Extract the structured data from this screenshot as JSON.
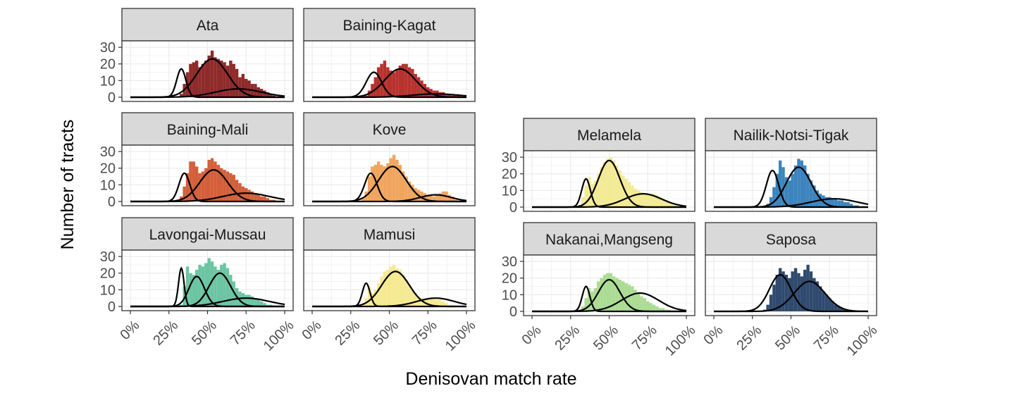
{
  "chart_data": {
    "type": "histogram",
    "xlabel": "Denisovan match rate",
    "ylabel": "Number of tracts",
    "x_ticks": [
      "0%",
      "25%",
      "50%",
      "75%",
      "100%"
    ],
    "x_range": [
      0,
      100
    ],
    "y_ticks": [
      "0",
      "10",
      "20",
      "30"
    ],
    "y_range": [
      0,
      33
    ],
    "grid": true,
    "legend": "none",
    "curve_color": "#000000",
    "panels": [
      {
        "name": "Ata",
        "color": "#8E2A2A",
        "bins": {
          "start": 0,
          "width": 2,
          "counts": [
            0,
            0,
            0,
            0,
            0,
            0,
            0,
            0,
            0,
            0,
            0,
            0,
            0,
            0,
            0,
            0,
            2,
            8,
            15,
            20,
            21,
            22,
            18,
            20,
            22,
            25,
            28,
            24,
            23,
            22,
            21,
            19,
            22,
            20,
            17,
            12,
            14,
            11,
            10,
            8,
            8,
            6,
            5,
            4,
            3,
            2,
            1,
            0,
            0,
            0
          ]
        },
        "components": [
          {
            "mean": 33,
            "sd": 3,
            "peak": 17
          },
          {
            "mean": 53,
            "sd": 10,
            "peak": 23
          },
          {
            "mean": 70,
            "sd": 15,
            "peak": 5
          }
        ]
      },
      {
        "name": "Baining-Kagat",
        "color": "#B7322D",
        "bins": {
          "start": 0,
          "width": 2,
          "counts": [
            0,
            0,
            0,
            0,
            0,
            0,
            0,
            0,
            0,
            0,
            0,
            0,
            0,
            0,
            0,
            0,
            0,
            1,
            4,
            8,
            12,
            18,
            20,
            22,
            18,
            16,
            15,
            17,
            19,
            20,
            20,
            18,
            17,
            14,
            12,
            10,
            8,
            6,
            5,
            4,
            4,
            3,
            3,
            2,
            2,
            1,
            1,
            1,
            0,
            0
          ]
        },
        "components": [
          {
            "mean": 40,
            "sd": 5,
            "peak": 15
          },
          {
            "mean": 57,
            "sd": 10,
            "peak": 17
          },
          {
            "mean": 80,
            "sd": 15,
            "peak": 2
          }
        ]
      },
      {
        "name": "Baining-Mali",
        "color": "#D35F3A",
        "bins": {
          "start": 0,
          "width": 2,
          "counts": [
            0,
            0,
            0,
            0,
            0,
            0,
            0,
            0,
            0,
            0,
            0,
            0,
            0,
            0,
            0,
            1,
            3,
            9,
            17,
            24,
            24,
            21,
            17,
            18,
            20,
            25,
            26,
            24,
            22,
            20,
            19,
            18,
            17,
            16,
            13,
            11,
            9,
            8,
            7,
            6,
            5,
            4,
            3,
            3,
            2,
            1,
            1,
            0,
            0,
            0
          ]
        },
        "components": [
          {
            "mean": 35,
            "sd": 3.5,
            "peak": 17
          },
          {
            "mean": 54,
            "sd": 9,
            "peak": 19
          },
          {
            "mean": 75,
            "sd": 15,
            "peak": 5
          }
        ]
      },
      {
        "name": "Kove",
        "color": "#F0A55E",
        "bins": {
          "start": 0,
          "width": 2,
          "counts": [
            0,
            0,
            0,
            0,
            0,
            0,
            0,
            0,
            0,
            0,
            0,
            0,
            0,
            0,
            0,
            0,
            2,
            6,
            15,
            21,
            22,
            24,
            22,
            21,
            23,
            26,
            28,
            25,
            22,
            18,
            15,
            12,
            10,
            8,
            7,
            6,
            5,
            4,
            4,
            3,
            4,
            5,
            6,
            6,
            4,
            3,
            1,
            0,
            0,
            0
          ]
        },
        "components": [
          {
            "mean": 38,
            "sd": 4,
            "peak": 17
          },
          {
            "mean": 52,
            "sd": 9,
            "peak": 21
          },
          {
            "mean": 80,
            "sd": 10,
            "peak": 4
          }
        ]
      },
      {
        "name": "Melamela",
        "color": "#F2EA95",
        "bins": {
          "start": 0,
          "width": 2,
          "counts": [
            0,
            0,
            0,
            0,
            0,
            0,
            0,
            0,
            0,
            0,
            0,
            0,
            0,
            0,
            0,
            1,
            6,
            13,
            18,
            14,
            16,
            20,
            24,
            27,
            29,
            30,
            28,
            25,
            22,
            19,
            17,
            15,
            13,
            11,
            10,
            9,
            8,
            8,
            8,
            8,
            7,
            6,
            5,
            4,
            3,
            2,
            1,
            0,
            0,
            0
          ]
        },
        "components": [
          {
            "mean": 35,
            "sd": 2.8,
            "peak": 17
          },
          {
            "mean": 50,
            "sd": 7,
            "peak": 28
          },
          {
            "mean": 72,
            "sd": 12,
            "peak": 8
          }
        ]
      },
      {
        "name": "Nailik-Notsi-Tigak",
        "color": "#3C84BD",
        "bins": {
          "start": 0,
          "width": 2,
          "counts": [
            0,
            0,
            0,
            0,
            0,
            0,
            0,
            0,
            0,
            0,
            0,
            0,
            0,
            0,
            0,
            0,
            0,
            2,
            6,
            12,
            20,
            28,
            24,
            18,
            16,
            20,
            25,
            29,
            28,
            25,
            20,
            16,
            13,
            10,
            8,
            7,
            6,
            6,
            5,
            5,
            4,
            4,
            3,
            3,
            2,
            1,
            1,
            0,
            0,
            0
          ]
        },
        "components": [
          {
            "mean": 38,
            "sd": 4,
            "peak": 22
          },
          {
            "mean": 55,
            "sd": 8,
            "peak": 24
          },
          {
            "mean": 78,
            "sd": 15,
            "peak": 5
          }
        ]
      },
      {
        "name": "Lavongai-Mussau",
        "color": "#6BC4A2",
        "bins": {
          "start": 0,
          "width": 2,
          "counts": [
            0,
            0,
            0,
            0,
            0,
            0,
            0,
            0,
            0,
            0,
            0,
            0,
            0,
            0,
            0,
            0,
            1,
            12,
            24,
            20,
            19,
            22,
            25,
            24,
            26,
            29,
            27,
            24,
            22,
            25,
            26,
            23,
            19,
            15,
            11,
            9,
            8,
            7,
            7,
            6,
            5,
            4,
            3,
            2,
            1,
            1,
            0,
            0,
            0,
            0
          ]
        },
        "components": [
          {
            "mean": 33,
            "sd": 1.8,
            "peak": 23
          },
          {
            "mean": 43,
            "sd": 5,
            "peak": 18
          },
          {
            "mean": 58,
            "sd": 7,
            "peak": 20
          },
          {
            "mean": 75,
            "sd": 15,
            "peak": 5
          }
        ]
      },
      {
        "name": "Mamusi",
        "color": "#F5EA92",
        "bins": {
          "start": 0,
          "width": 2,
          "counts": [
            0,
            0,
            0,
            0,
            0,
            0,
            0,
            0,
            0,
            0,
            0,
            0,
            0,
            0,
            0,
            0,
            1,
            5,
            12,
            8,
            10,
            14,
            18,
            21,
            22,
            24,
            25,
            23,
            22,
            19,
            16,
            13,
            10,
            8,
            6,
            5,
            4,
            4,
            5,
            5,
            4,
            4,
            3,
            2,
            1,
            1,
            0,
            0,
            0,
            0
          ]
        },
        "components": [
          {
            "mean": 35,
            "sd": 2.5,
            "peak": 14
          },
          {
            "mean": 54,
            "sd": 9,
            "peak": 21
          },
          {
            "mean": 80,
            "sd": 12,
            "peak": 5
          }
        ]
      },
      {
        "name": "Nakanai,Mangseng",
        "color": "#ABDC93",
        "bins": {
          "start": 0,
          "width": 2,
          "counts": [
            0,
            0,
            0,
            0,
            0,
            0,
            0,
            0,
            0,
            0,
            0,
            0,
            0,
            0,
            0,
            1,
            3,
            8,
            14,
            12,
            14,
            18,
            20,
            22,
            23,
            23,
            21,
            20,
            19,
            18,
            17,
            16,
            15,
            13,
            11,
            9,
            8,
            6,
            5,
            4,
            3,
            2,
            2,
            1,
            1,
            0,
            0,
            0,
            0,
            0
          ]
        },
        "components": [
          {
            "mean": 35,
            "sd": 2.5,
            "peak": 15
          },
          {
            "mean": 50,
            "sd": 7,
            "peak": 19
          },
          {
            "mean": 70,
            "sd": 12,
            "peak": 11
          }
        ]
      },
      {
        "name": "Saposa",
        "color": "#2F4A6E",
        "bins": {
          "start": 0,
          "width": 2,
          "counts": [
            0,
            0,
            0,
            0,
            0,
            0,
            0,
            0,
            0,
            0,
            0,
            0,
            0,
            0,
            0,
            0,
            1,
            4,
            10,
            16,
            22,
            26,
            24,
            22,
            20,
            24,
            26,
            23,
            21,
            25,
            28,
            24,
            20,
            18,
            15,
            12,
            10,
            8,
            6,
            4,
            3,
            2,
            1,
            1,
            0,
            0,
            0,
            0,
            0,
            0
          ]
        },
        "components": [
          {
            "mean": 43,
            "sd": 7,
            "peak": 22
          },
          {
            "mean": 62,
            "sd": 10,
            "peak": 18
          }
        ]
      }
    ]
  }
}
